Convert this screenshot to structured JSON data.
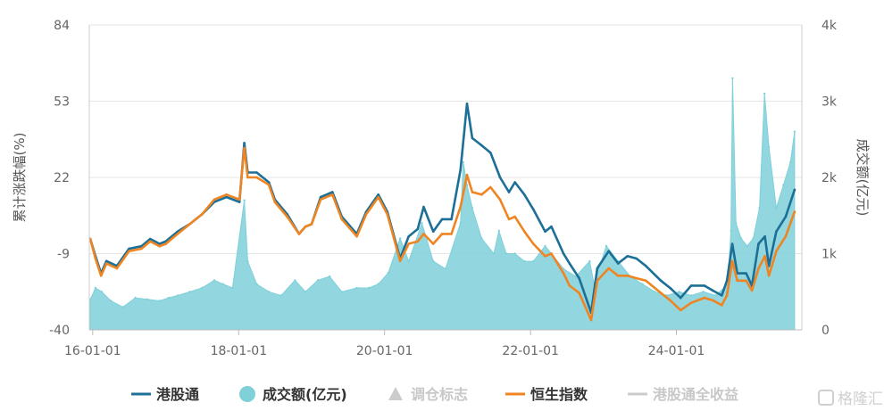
{
  "chart_data": {
    "type": "line",
    "xlabel": "",
    "ylabel": "累计涨跌幅(%)",
    "y2label": "成交额(亿元)",
    "ylim": [
      -40,
      84
    ],
    "y2lim": [
      0,
      4000
    ],
    "y_ticks": [
      "84",
      "53",
      "22",
      "-9",
      "-40"
    ],
    "y2_ticks": [
      "4k",
      "3k",
      "2k",
      "1k",
      "0"
    ],
    "x_ticks": [
      "16-01-01",
      "18-01-01",
      "20-01-01",
      "22-01-01",
      "24-01-01"
    ],
    "grid": true,
    "legend_position": "bottom",
    "colors": {
      "hk_connect": "#1c6f96",
      "turnover": "#7fd0d9",
      "marker": "#cccccc",
      "hsi": "#ef8422",
      "total_return": "#cccccc"
    },
    "legend": [
      {
        "label": "港股通",
        "symbol": "line",
        "color": "#1c6f96",
        "muted": false
      },
      {
        "label": "成交额(亿元)",
        "symbol": "circle",
        "color": "#7fd0d9",
        "muted": false
      },
      {
        "label": "调仓标志",
        "symbol": "triangle",
        "color": "#cccccc",
        "muted": true
      },
      {
        "label": "恒生指数",
        "symbol": "line",
        "color": "#ef8422",
        "muted": false
      },
      {
        "label": "港股通全收益",
        "symbol": "line",
        "color": "#cccccc",
        "muted": true
      }
    ],
    "series": [
      {
        "name": "港股通",
        "axis": "left",
        "x": [
          "2015-12-20",
          "2016-01-15",
          "2016-02-12",
          "2016-03-10",
          "2016-05-01",
          "2016-07-01",
          "2016-09-01",
          "2016-10-15",
          "2016-12-01",
          "2017-01-01",
          "2017-03-01",
          "2017-05-01",
          "2017-07-01",
          "2017-09-01",
          "2017-11-01",
          "2018-01-05",
          "2018-01-29",
          "2018-02-15",
          "2018-04-01",
          "2018-06-01",
          "2018-07-01",
          "2018-09-01",
          "2018-10-30",
          "2018-12-01",
          "2019-01-01",
          "2019-02-15",
          "2019-04-15",
          "2019-06-01",
          "2019-08-15",
          "2019-10-01",
          "2019-12-01",
          "2020-01-15",
          "2020-03-19",
          "2020-05-01",
          "2020-06-15",
          "2020-07-15",
          "2020-09-01",
          "2020-10-15",
          "2020-12-01",
          "2021-01-15",
          "2021-02-17",
          "2021-03-15",
          "2021-05-01",
          "2021-06-15",
          "2021-08-01",
          "2021-09-15",
          "2021-10-15",
          "2021-12-01",
          "2022-01-15",
          "2022-03-15",
          "2022-04-15",
          "2022-06-15",
          "2022-07-15",
          "2022-09-01",
          "2022-10-31",
          "2022-12-01",
          "2023-01-27",
          "2023-03-15",
          "2023-05-01",
          "2023-06-15",
          "2023-08-01",
          "2023-10-15",
          "2023-12-01",
          "2024-01-22",
          "2024-03-15",
          "2024-05-20",
          "2024-07-01",
          "2024-08-15",
          "2024-09-10",
          "2024-10-07",
          "2024-11-01",
          "2024-12-15",
          "2025-01-13",
          "2025-02-15",
          "2025-03-19",
          "2025-04-08",
          "2025-05-15",
          "2025-07-01",
          "2025-08-15"
        ],
        "values": [
          -3,
          -10,
          -17,
          -12,
          -14,
          -7,
          -6,
          -3,
          -5,
          -4,
          0,
          3,
          7,
          12,
          14,
          12,
          36,
          24,
          24,
          20,
          13,
          7,
          -1,
          2,
          3,
          14,
          16,
          6,
          -1,
          8,
          15,
          8,
          -11,
          -2,
          1,
          10,
          0,
          5,
          5,
          25,
          52,
          38,
          35,
          32,
          22,
          16,
          20,
          15,
          9,
          0,
          2,
          -9,
          -13,
          -19,
          -33,
          -15,
          -8,
          -13,
          -10,
          -11,
          -14,
          -20,
          -23,
          -27,
          -22,
          -22,
          -24,
          -26,
          -20,
          -5,
          -17,
          -17,
          -22,
          -5,
          -2,
          -14,
          0,
          6,
          17
        ]
      },
      {
        "name": "恒生指数",
        "axis": "left",
        "x": [
          "2015-12-20",
          "2016-01-15",
          "2016-02-12",
          "2016-03-10",
          "2016-05-01",
          "2016-07-01",
          "2016-09-01",
          "2016-10-15",
          "2016-12-01",
          "2017-01-01",
          "2017-03-01",
          "2017-05-01",
          "2017-07-01",
          "2017-09-01",
          "2017-11-01",
          "2018-01-05",
          "2018-01-29",
          "2018-02-15",
          "2018-04-01",
          "2018-06-01",
          "2018-07-01",
          "2018-09-01",
          "2018-10-30",
          "2018-12-01",
          "2019-01-01",
          "2019-02-15",
          "2019-04-15",
          "2019-06-01",
          "2019-08-15",
          "2019-10-01",
          "2019-12-01",
          "2020-01-15",
          "2020-03-19",
          "2020-05-01",
          "2020-06-15",
          "2020-07-15",
          "2020-09-01",
          "2020-10-15",
          "2020-12-01",
          "2021-01-15",
          "2021-02-17",
          "2021-03-15",
          "2021-05-01",
          "2021-06-15",
          "2021-08-01",
          "2021-09-15",
          "2021-10-15",
          "2021-12-01",
          "2022-01-15",
          "2022-03-15",
          "2022-04-15",
          "2022-06-15",
          "2022-07-15",
          "2022-09-01",
          "2022-10-31",
          "2022-12-01",
          "2023-01-27",
          "2023-03-15",
          "2023-05-01",
          "2023-06-15",
          "2023-08-01",
          "2023-10-15",
          "2023-12-01",
          "2024-01-22",
          "2024-03-15",
          "2024-05-20",
          "2024-07-01",
          "2024-08-15",
          "2024-09-10",
          "2024-10-07",
          "2024-11-01",
          "2024-12-15",
          "2025-01-13",
          "2025-02-15",
          "2025-03-19",
          "2025-04-08",
          "2025-05-15",
          "2025-07-01",
          "2025-08-15"
        ],
        "values": [
          -3,
          -11,
          -18,
          -13,
          -15,
          -8,
          -7,
          -4,
          -6,
          -5,
          -1,
          3,
          7,
          13,
          15,
          13,
          34,
          22,
          22,
          19,
          12,
          6,
          -1,
          2,
          3,
          13,
          15,
          5,
          -2,
          7,
          14,
          7,
          -12,
          -5,
          -4,
          -1,
          -5,
          -1,
          -1,
          10,
          23,
          16,
          15,
          18,
          13,
          5,
          6,
          0,
          -5,
          -10,
          -9,
          -17,
          -22,
          -25,
          -36,
          -20,
          -15,
          -18,
          -18,
          -19,
          -20,
          -25,
          -28,
          -32,
          -29,
          -27,
          -28,
          -30,
          -26,
          -12,
          -20,
          -20,
          -24,
          -15,
          -10,
          -18,
          -8,
          -2,
          8
        ]
      },
      {
        "name": "成交额(亿元)",
        "axis": "right",
        "type": "area",
        "x": [
          "2015-12-20",
          "2016-01-15",
          "2016-02-15",
          "2016-04-01",
          "2016-06-01",
          "2016-08-01",
          "2016-10-01",
          "2016-12-01",
          "2017-01-15",
          "2017-03-01",
          "2017-05-01",
          "2017-07-01",
          "2017-09-01",
          "2017-10-15",
          "2017-12-01",
          "2018-01-29",
          "2018-02-15",
          "2018-04-01",
          "2018-06-01",
          "2018-08-01",
          "2018-10-10",
          "2018-12-01",
          "2019-02-01",
          "2019-04-01",
          "2019-06-01",
          "2019-08-15",
          "2019-10-15",
          "2019-12-01",
          "2020-01-20",
          "2020-03-19",
          "2020-05-01",
          "2020-07-06",
          "2020-09-01",
          "2020-11-01",
          "2021-01-15",
          "2021-01-29",
          "2021-02-17",
          "2021-03-15",
          "2021-05-01",
          "2021-07-01",
          "2021-07-27",
          "2021-09-01",
          "2021-10-15",
          "2021-12-01",
          "2022-01-15",
          "2022-03-15",
          "2022-04-15",
          "2022-06-15",
          "2022-08-15",
          "2022-10-24",
          "2022-11-15",
          "2023-01-15",
          "2023-03-15",
          "2023-05-15",
          "2023-07-15",
          "2023-09-15",
          "2023-11-15",
          "2024-01-15",
          "2024-03-15",
          "2024-05-15",
          "2024-07-15",
          "2024-09-15",
          "2024-09-30",
          "2024-10-08",
          "2024-10-25",
          "2024-11-20",
          "2024-12-20",
          "2025-01-20",
          "2025-02-20",
          "2025-03-17",
          "2025-04-08",
          "2025-05-15",
          "2025-06-20",
          "2025-07-25",
          "2025-08-15"
        ],
        "values": [
          400,
          550,
          500,
          380,
          300,
          420,
          400,
          380,
          420,
          450,
          500,
          550,
          650,
          600,
          550,
          1700,
          900,
          600,
          500,
          450,
          650,
          500,
          650,
          700,
          500,
          550,
          550,
          600,
          750,
          1200,
          900,
          1400,
          900,
          800,
          1400,
          2200,
          1900,
          1600,
          1200,
          1000,
          1300,
          1000,
          1000,
          900,
          900,
          1100,
          1000,
          800,
          700,
          900,
          600,
          1100,
          900,
          700,
          600,
          500,
          450,
          500,
          450,
          500,
          450,
          600,
          1300,
          3300,
          1400,
          1200,
          1100,
          1200,
          1600,
          3100,
          2400,
          1600,
          1900,
          2200,
          2600
        ]
      }
    ]
  },
  "watermark": {
    "text": "格隆汇"
  }
}
